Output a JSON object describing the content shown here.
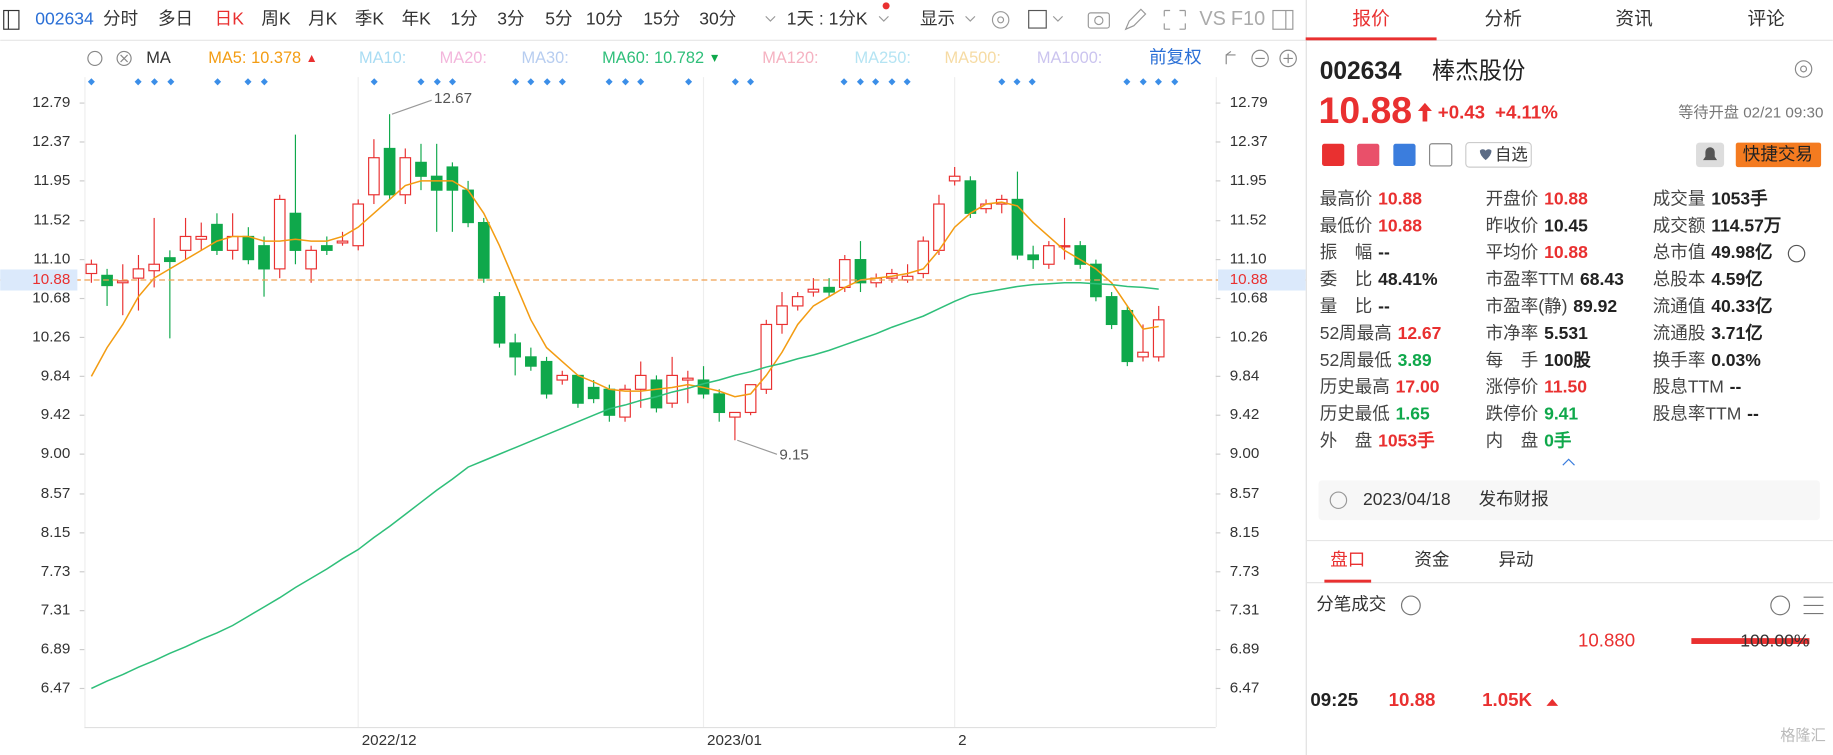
{
  "toolbar": {
    "code": "002634",
    "periods": [
      "分时",
      "多日",
      "日K",
      "周K",
      "月K",
      "季K",
      "年K",
      "1分",
      "3分",
      "5分",
      "10分",
      "15分",
      "30分"
    ],
    "active_period": 2,
    "range": "1天 : 1分K",
    "display": "显示",
    "vs": "VS",
    "f10": "F10"
  },
  "chart_header": {
    "ma": "MA",
    "adjust": "前复权"
  },
  "chart_data": {
    "type": "candlestick",
    "categories": [
      null,
      null,
      null,
      null,
      null,
      null,
      null,
      null,
      null,
      null,
      null,
      null,
      null,
      null,
      null,
      null,
      null,
      "2022/12",
      null,
      null,
      null,
      null,
      null,
      null,
      null,
      null,
      null,
      null,
      null,
      null,
      null,
      null,
      null,
      null,
      null,
      null,
      null,
      null,
      null,
      "2023/01",
      null,
      null,
      null,
      null,
      null,
      null,
      null,
      null,
      null,
      null,
      null,
      null,
      null,
      null,
      null,
      "2",
      null,
      null,
      null,
      null,
      null,
      null,
      null,
      null,
      null,
      null,
      null,
      null,
      null
    ],
    "open": [
      10.95,
      10.93,
      10.85,
      10.9,
      10.98,
      11.12,
      11.2,
      11.32,
      11.48,
      11.2,
      11.35,
      11.25,
      11.0,
      11.6,
      11.0,
      11.25,
      11.28,
      11.25,
      11.8,
      12.3,
      11.8,
      12.15,
      12.0,
      12.1,
      11.85,
      11.5,
      10.7,
      10.2,
      10.05,
      10.0,
      9.8,
      9.85,
      9.72,
      9.7,
      9.4,
      9.7,
      9.8,
      9.55,
      9.8,
      9.8,
      9.65,
      9.4,
      9.45,
      9.7,
      10.4,
      10.6,
      10.75,
      10.8,
      10.8,
      11.1,
      10.85,
      10.9,
      10.88,
      10.95,
      11.2,
      11.95,
      11.95,
      11.65,
      11.7,
      11.75,
      11.15,
      11.05,
      11.25,
      11.25,
      11.05,
      10.7,
      10.55,
      10.05,
      10.05
    ],
    "high": [
      11.1,
      11.0,
      11.05,
      11.15,
      11.55,
      11.2,
      11.55,
      11.5,
      11.6,
      11.6,
      11.45,
      11.35,
      11.8,
      12.45,
      11.25,
      11.35,
      11.4,
      11.75,
      12.4,
      12.67,
      12.3,
      12.35,
      12.35,
      12.15,
      11.95,
      11.55,
      10.75,
      10.3,
      10.15,
      10.05,
      9.9,
      9.85,
      9.8,
      9.75,
      9.75,
      10.0,
      9.85,
      10.05,
      9.9,
      9.95,
      9.7,
      9.45,
      9.75,
      10.45,
      10.75,
      10.75,
      10.9,
      10.9,
      11.15,
      11.3,
      10.95,
      11.0,
      11.05,
      11.35,
      11.8,
      12.1,
      12.0,
      11.75,
      11.8,
      12.05,
      11.25,
      11.3,
      11.55,
      11.3,
      11.1,
      10.75,
      10.6,
      10.4,
      10.6
    ],
    "low": [
      10.85,
      10.6,
      10.5,
      10.55,
      10.8,
      10.25,
      11.1,
      11.2,
      11.15,
      11.1,
      11.05,
      10.7,
      10.9,
      11.05,
      10.85,
      11.15,
      11.25,
      11.2,
      11.7,
      11.75,
      11.7,
      11.85,
      11.4,
      11.4,
      11.45,
      10.85,
      10.15,
      9.85,
      9.9,
      9.6,
      9.75,
      9.5,
      9.55,
      9.35,
      9.35,
      9.5,
      9.45,
      9.5,
      9.55,
      9.6,
      9.35,
      9.15,
      9.42,
      9.65,
      10.3,
      10.55,
      10.7,
      10.7,
      10.75,
      10.75,
      10.8,
      10.85,
      10.85,
      10.9,
      11.15,
      11.9,
      11.55,
      11.6,
      11.6,
      11.1,
      11.0,
      11.0,
      11.1,
      11.0,
      10.65,
      10.35,
      9.95,
      10.0,
      10.0
    ],
    "close": [
      11.05,
      10.82,
      10.87,
      11.0,
      11.05,
      11.08,
      11.35,
      11.35,
      11.2,
      11.35,
      11.1,
      11.0,
      11.75,
      11.2,
      11.2,
      11.2,
      11.3,
      11.7,
      12.2,
      11.8,
      12.2,
      12.0,
      11.85,
      11.85,
      11.5,
      10.9,
      10.2,
      10.05,
      9.95,
      9.65,
      9.85,
      9.55,
      9.6,
      9.42,
      9.7,
      9.85,
      9.5,
      9.85,
      9.82,
      9.65,
      9.45,
      9.45,
      9.75,
      10.4,
      10.6,
      10.7,
      10.78,
      10.75,
      11.1,
      10.85,
      10.9,
      10.95,
      10.92,
      11.3,
      11.7,
      12.0,
      11.6,
      11.7,
      11.75,
      11.15,
      11.1,
      11.25,
      11.25,
      11.05,
      10.7,
      10.4,
      10.0,
      10.1,
      10.45
    ],
    "series": [
      {
        "name": "MA5:",
        "color": "#f39c12",
        "values": [
          9.84,
          10.15,
          10.4,
          10.7,
          10.9,
          11.0,
          11.1,
          11.2,
          11.3,
          11.35,
          11.35,
          11.3,
          11.3,
          11.32,
          11.3,
          11.3,
          11.35,
          11.45,
          11.6,
          11.75,
          11.9,
          11.95,
          11.95,
          11.95,
          11.85,
          11.6,
          11.25,
          10.85,
          10.45,
          10.15,
          10.0,
          9.85,
          9.78,
          9.7,
          9.68,
          9.68,
          9.7,
          9.72,
          9.75,
          9.72,
          9.68,
          9.62,
          9.65,
          9.85,
          10.1,
          10.4,
          10.6,
          10.7,
          10.8,
          10.88,
          10.9,
          10.92,
          10.95,
          11.0,
          11.2,
          11.45,
          11.6,
          11.7,
          11.72,
          11.68,
          11.5,
          11.35,
          11.2,
          11.1,
          11.0,
          10.85,
          10.6,
          10.35,
          10.378
        ]
      },
      {
        "name": "MA60:",
        "color": "#2fbf7a",
        "values": [
          6.47,
          6.55,
          6.62,
          6.7,
          6.77,
          6.85,
          6.92,
          7.0,
          7.07,
          7.15,
          7.25,
          7.35,
          7.45,
          7.56,
          7.66,
          7.76,
          7.87,
          7.97,
          8.1,
          8.22,
          8.35,
          8.48,
          8.61,
          8.73,
          8.86,
          8.93,
          9.0,
          9.07,
          9.14,
          9.21,
          9.28,
          9.35,
          9.42,
          9.49,
          9.53,
          9.58,
          9.62,
          9.67,
          9.71,
          9.76,
          9.8,
          9.85,
          9.89,
          9.94,
          9.98,
          10.03,
          10.07,
          10.12,
          10.18,
          10.24,
          10.3,
          10.37,
          10.43,
          10.49,
          10.57,
          10.65,
          10.72,
          10.75,
          10.78,
          10.81,
          10.83,
          10.84,
          10.85,
          10.85,
          10.84,
          10.83,
          10.81,
          10.8,
          10.782
        ]
      }
    ],
    "inactive_ma": [
      {
        "name": "MA10:",
        "color": "#a9dcf3"
      },
      {
        "name": "MA20:",
        "color": "#f3b6dc"
      },
      {
        "name": "MA30:",
        "color": "#b7cdf0"
      },
      {
        "name": "MA120:",
        "color": "#f5b2c1"
      },
      {
        "name": "MA250:",
        "color": "#b5e4f3"
      },
      {
        "name": "MA500:",
        "color": "#f6dba4"
      },
      {
        "name": "MA1000:",
        "color": "#cbc4ef"
      }
    ],
    "up_color": "#e93030",
    "down_color": "#0fa84b",
    "last_price": 10.88,
    "ylim": [
      6.08,
      13.07
    ],
    "yticks": [
      12.79,
      12.37,
      11.95,
      11.52,
      {
        "value": 11.1,
        "label": "11.10"
      },
      10.68,
      10.26,
      9.84,
      9.42,
      {
        "value": 9,
        "label": "9.00"
      },
      8.57,
      8.15,
      7.73,
      7.31,
      6.89,
      6.47
    ]
  },
  "panel": {
    "tabs": [
      "报价",
      "分析",
      "资讯",
      "评论"
    ],
    "active_tab": 0,
    "code": "002634",
    "name": "棒杰股份",
    "price": "10.88",
    "change": "+0.43",
    "change_pct": "+4.11%",
    "status": "等待开盘 02/21 09:30",
    "watch": "自选",
    "trade": "快捷交易",
    "stats": [
      [
        {
          "label": "最高价",
          "value": "10.88",
          "color": "#e93030"
        },
        {
          "label": "最低价",
          "value": "10.88",
          "color": "#e93030"
        },
        {
          "label": "振　幅",
          "value": "--",
          "color": "#222"
        },
        {
          "label": "委　比",
          "value": "48.41%",
          "color": "#222"
        },
        {
          "label": "量　比",
          "value": "--",
          "color": "#222"
        },
        {
          "label": "52周最高",
          "value": "12.67",
          "color": "#e93030"
        },
        {
          "label": "52周最低",
          "value": "3.89",
          "color": "#0fa84b"
        },
        {
          "label": "历史最高",
          "value": "17.00",
          "color": "#e93030"
        },
        {
          "label": "历史最低",
          "value": "1.65",
          "color": "#0fa84b"
        },
        {
          "label": "外　盘",
          "value": "1053手",
          "color": "#e93030"
        }
      ],
      [
        {
          "label": "开盘价",
          "value": "10.88",
          "color": "#e93030"
        },
        {
          "label": "昨收价",
          "value": "10.45",
          "color": "#222"
        },
        {
          "label": "平均价",
          "value": "10.88",
          "color": "#e93030"
        },
        {
          "label": "市盈率TTM",
          "value": "68.43",
          "color": "#222"
        },
        {
          "label": "市盈率(静)",
          "value": "89.92",
          "color": "#222"
        },
        {
          "label": "市净率",
          "value": "5.531",
          "color": "#222"
        },
        {
          "label": "每　手",
          "value": "100股",
          "color": "#222"
        },
        {
          "label": "涨停价",
          "value": "11.50",
          "color": "#e93030"
        },
        {
          "label": "跌停价",
          "value": "9.41",
          "color": "#0fa84b"
        },
        {
          "label": "内　盘",
          "value": "0手",
          "color": "#0fa84b"
        }
      ],
      [
        {
          "label": "成交量",
          "value": "1053手",
          "color": "#222"
        },
        {
          "label": "成交额",
          "value": "114.57万",
          "color": "#222"
        },
        {
          "label": "总市值",
          "value": "49.98亿",
          "color": "#222"
        },
        {
          "label": "总股本",
          "value": "4.59亿",
          "color": "#222"
        },
        {
          "label": "流通值",
          "value": "40.33亿",
          "color": "#222"
        },
        {
          "label": "流通股",
          "value": "3.71亿",
          "color": "#222"
        },
        {
          "label": "换手率",
          "value": "0.03%",
          "color": "#222"
        },
        {
          "label": "股息TTM",
          "value": "--",
          "color": "#222"
        },
        {
          "label": "股息率TTM",
          "value": "--",
          "color": "#222"
        }
      ]
    ],
    "notice": {
      "date": "2023/04/18",
      "text": "发布财报"
    },
    "subtabs": [
      "盘口",
      "资金",
      "异动"
    ],
    "active_subtab": 0,
    "ticks_title": "分笔成交",
    "summary": {
      "price": "10.880",
      "ratio": "100.00%"
    },
    "trades": [
      {
        "time": "09:25",
        "price": "10.88",
        "volume": "1.05K"
      }
    ],
    "watermark": "格隆汇"
  }
}
